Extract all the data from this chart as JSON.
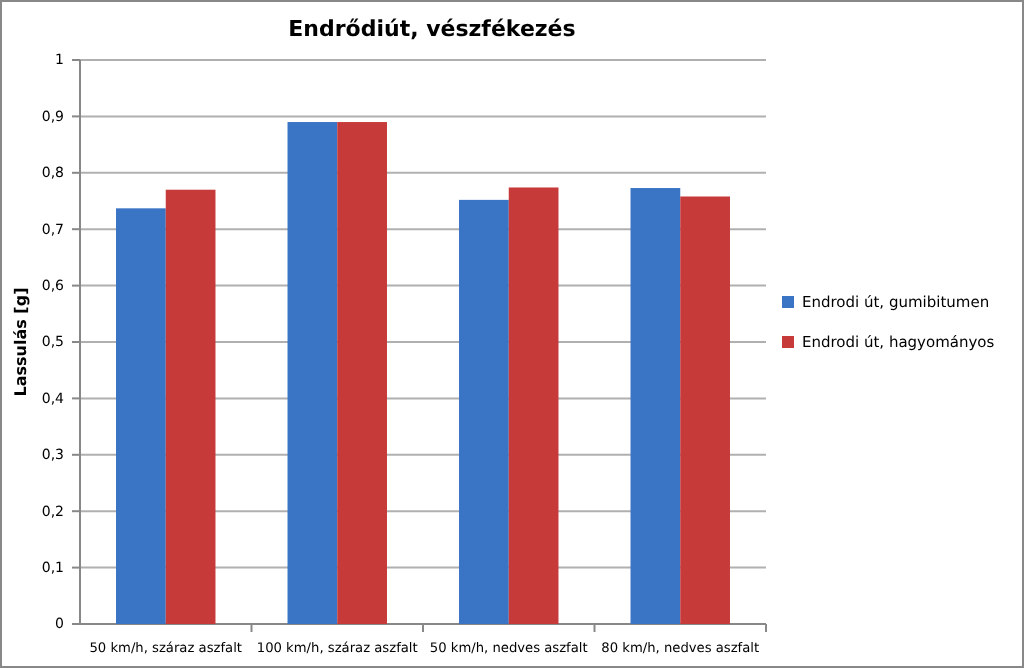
{
  "chart_data": {
    "type": "bar",
    "title": "Endrődiút, vészfékezés",
    "ylabel": "Lassulás [g]",
    "categories": [
      "50 km/h, száraz aszfalt",
      "100 km/h, száraz aszfalt",
      "50 km/h, nedves aszfalt",
      "80 km/h, nedves aszfalt"
    ],
    "series": [
      {
        "name": "Endrodi út, gumibitumen",
        "color": "#3a74c4",
        "values": [
          0.737,
          0.89,
          0.752,
          0.773
        ]
      },
      {
        "name": "Endrodi út, hagyományos",
        "color": "#c73a3a",
        "values": [
          0.77,
          0.89,
          0.774,
          0.758
        ]
      }
    ],
    "ylim": [
      0,
      1
    ],
    "yticks": [
      {
        "value": 0,
        "label": "0"
      },
      {
        "value": 0.1,
        "label": "0,1"
      },
      {
        "value": 0.2,
        "label": "0,2"
      },
      {
        "value": 0.3,
        "label": "0,3"
      },
      {
        "value": 0.4,
        "label": "0,4"
      },
      {
        "value": 0.5,
        "label": "0,5"
      },
      {
        "value": 0.6,
        "label": "0,6"
      },
      {
        "value": 0.7,
        "label": "0,7"
      },
      {
        "value": 0.8,
        "label": "0,8"
      },
      {
        "value": 0.9,
        "label": "0,9"
      },
      {
        "value": 1,
        "label": "1"
      }
    ],
    "grid": "y",
    "legend": "right"
  }
}
